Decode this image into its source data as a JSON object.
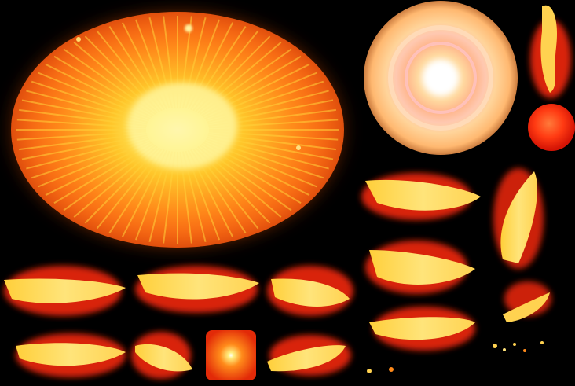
{
  "sheet": {
    "title": "",
    "background": "#000000",
    "sprites": [
      {
        "name": "explosion-burst",
        "kind": "burst"
      },
      {
        "name": "lens-flare-ring",
        "kind": "flare"
      },
      {
        "name": "fire-orb",
        "kind": "orb"
      },
      {
        "name": "flame-streak",
        "kind": "streak"
      },
      {
        "name": "spark-square",
        "kind": "spark"
      },
      {
        "name": "ember-particles",
        "kind": "particles"
      }
    ],
    "palette": {
      "core": "#fffbe0",
      "yellow": "#ffe03a",
      "orange": "#ff8a1a",
      "red": "#ff2a10",
      "deep_red": "#d41405",
      "flare_ring": "#ffd49a",
      "flare_pink": "#ffc0c8"
    }
  }
}
